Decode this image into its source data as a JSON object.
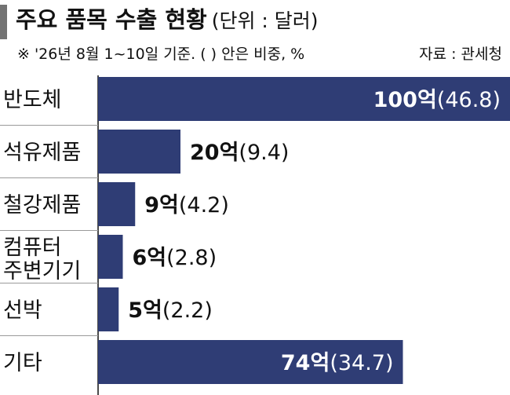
{
  "header": {
    "title": "주요 품목 수출 현황",
    "unit": "(단위 : 달러)",
    "note": "※ '26년 8월 1~10일 기준. ( ) 안은 비중, %",
    "source": "자료 : 관세청"
  },
  "chart_data": {
    "type": "bar",
    "orientation": "horizontal",
    "title": "주요 품목 수출 현황",
    "categories": [
      [
        "반도체"
      ],
      [
        "석유제품"
      ],
      [
        "철강제품"
      ],
      [
        "컴퓨터",
        "주변기기"
      ],
      [
        "선박"
      ],
      [
        "기타"
      ]
    ],
    "values": [
      100,
      20,
      9,
      6,
      5,
      74
    ],
    "shares": [
      46.8,
      9.4,
      4.2,
      2.8,
      2.2,
      34.7
    ],
    "value_labels": [
      "100억",
      "20억",
      "9억",
      "6억",
      "5억",
      "74억"
    ],
    "share_labels": [
      "(46.8)",
      "(9.4)",
      "(4.2)",
      "(2.8)",
      "(2.2)",
      "(34.7)"
    ],
    "label_inside": [
      true,
      false,
      false,
      false,
      false,
      true
    ],
    "bar_color": "#2f3d75",
    "inside_label_color": "#ffffff",
    "outside_label_color": "#111111",
    "divider_color": "#9a9a9a",
    "grid": false,
    "legend": false
  }
}
